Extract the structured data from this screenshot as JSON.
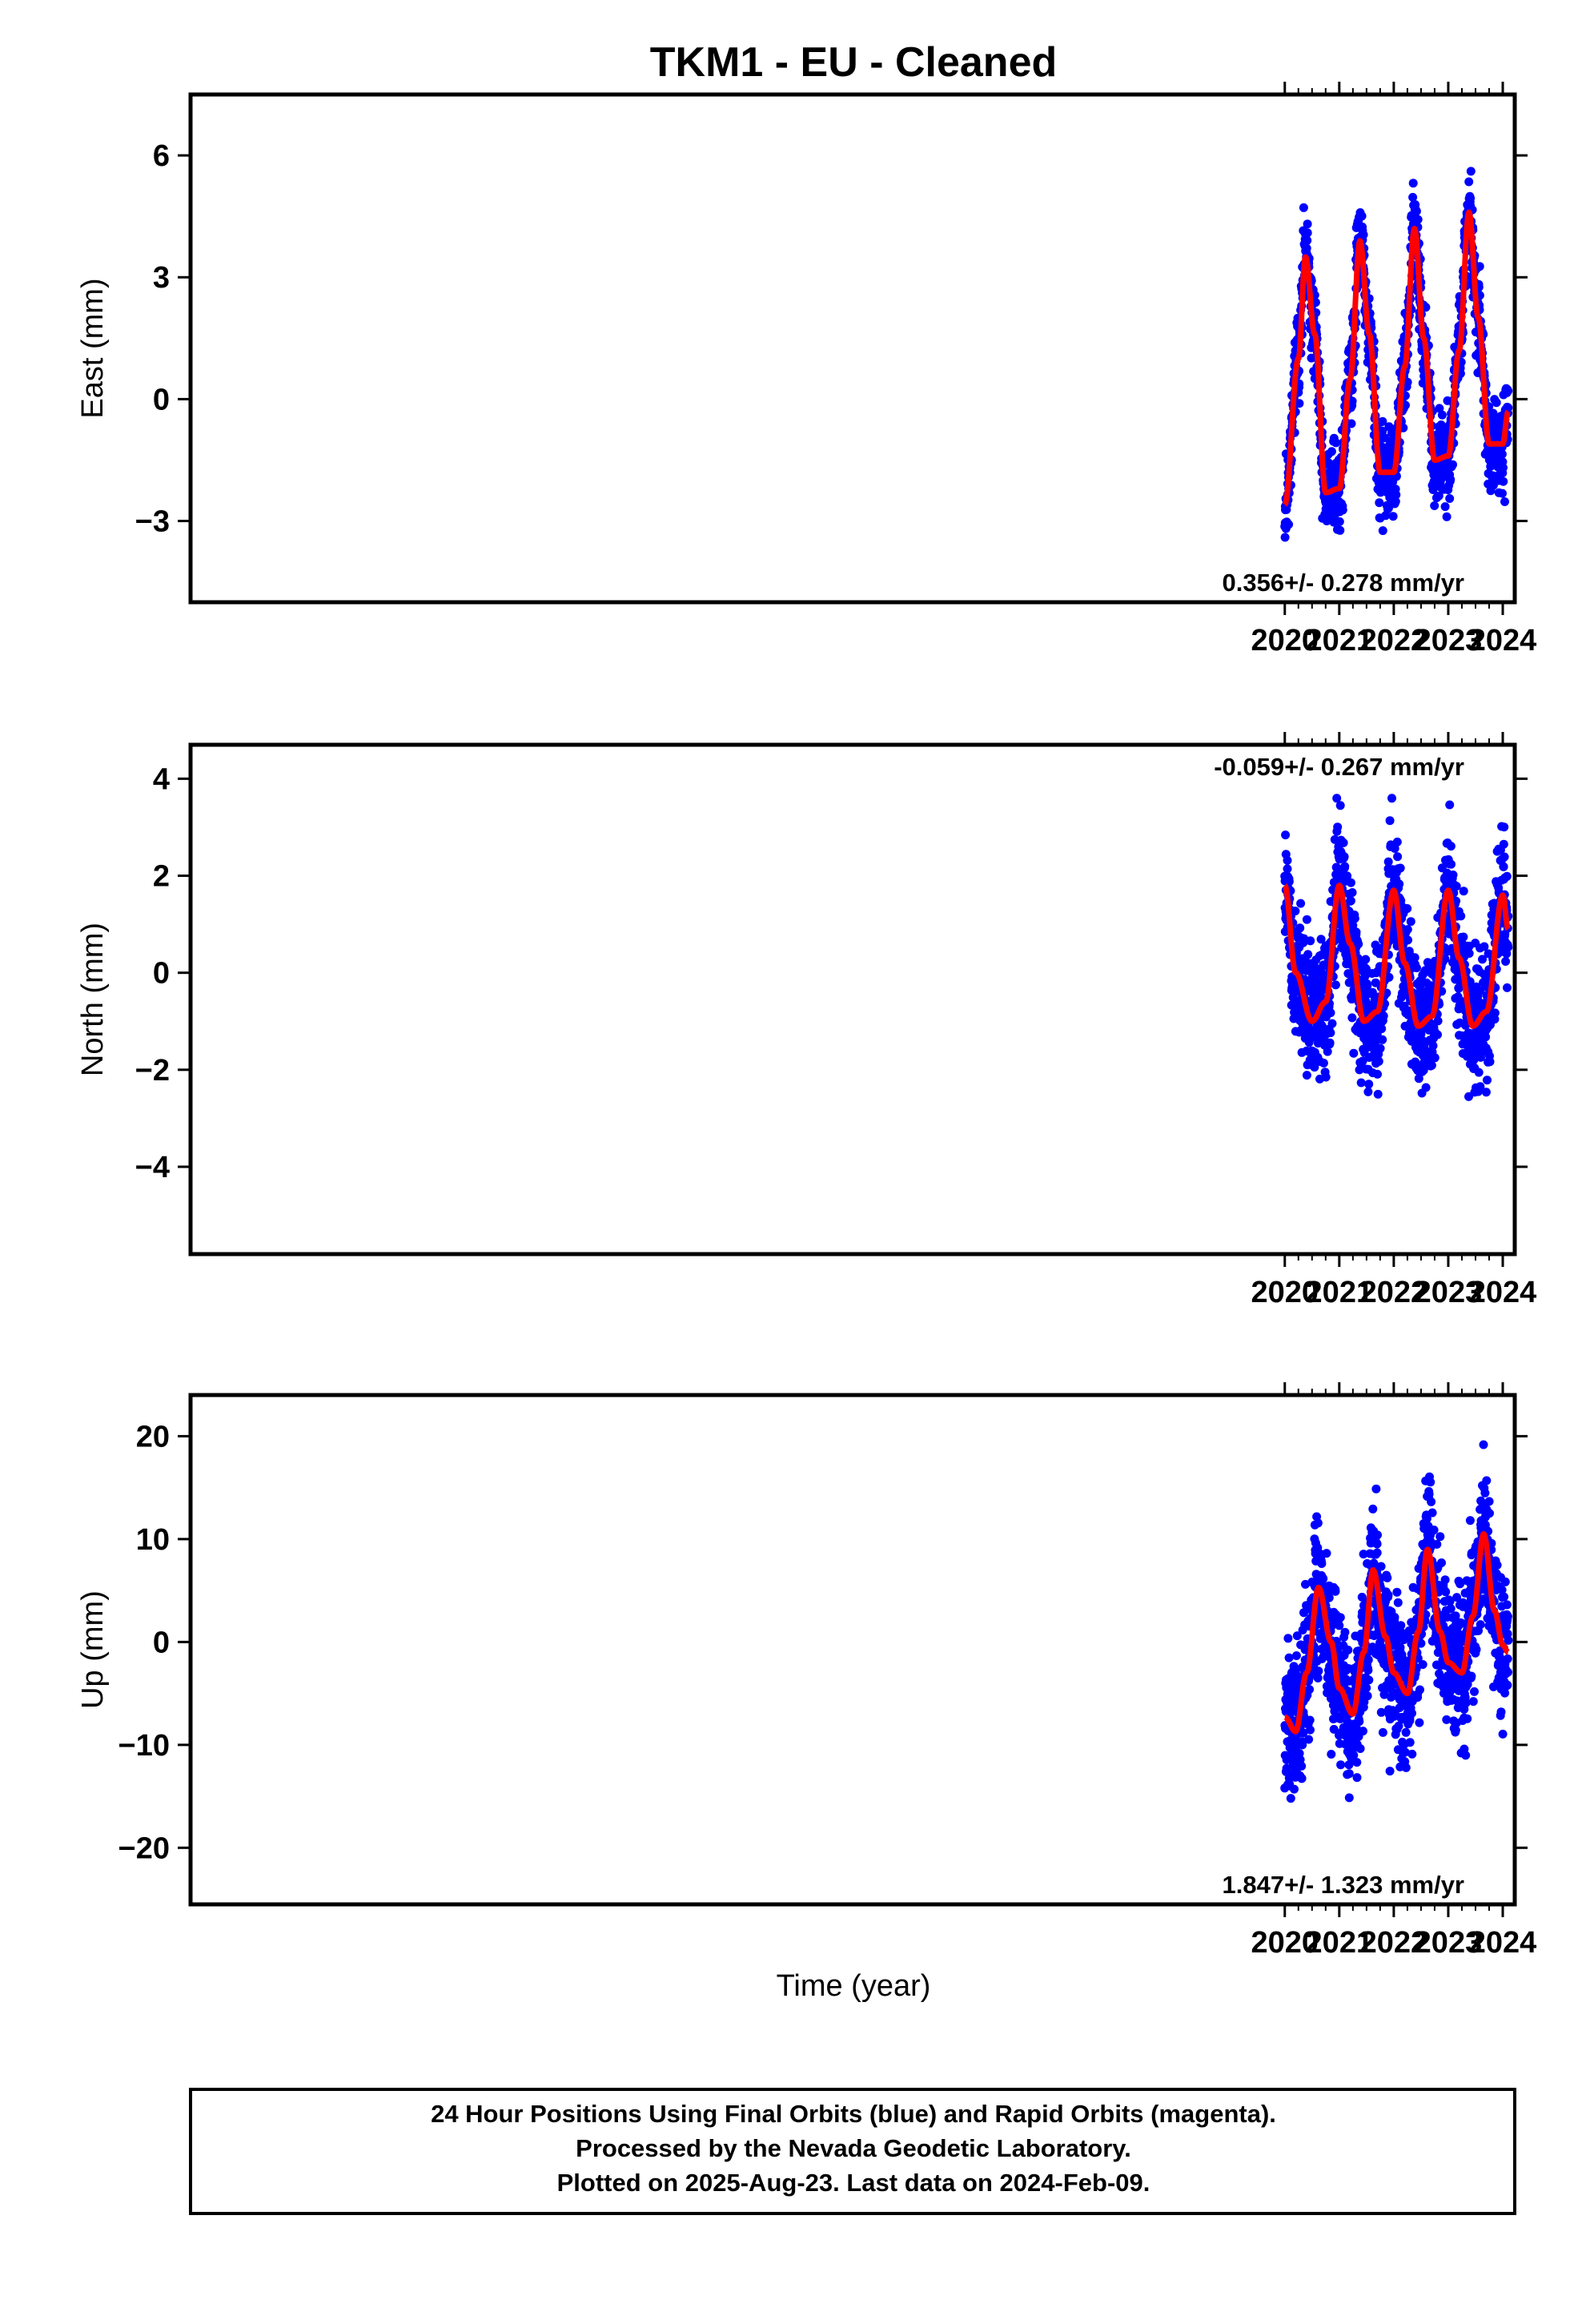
{
  "title": "TKM1  - EU - Cleaned",
  "xlabel": "Time (year)",
  "footer": {
    "line1": "24 Hour Positions Using Final Orbits (blue) and Rapid Orbits (magenta).",
    "line2": "Processed by the Nevada Geodetic Laboratory.",
    "line3": "Plotted on 2025-Aug-23. Last data on 2024-Feb-09."
  },
  "colors": {
    "points": "#0000ff",
    "model": "#ff0000",
    "frame": "#000000"
  },
  "chart_data": [
    {
      "type": "scatter",
      "ylabel": "East (mm)",
      "rate_label": "0.356+/- 0.278 mm/yr",
      "rate_position": "bottom-right",
      "xlim": [
        1999.92,
        2024.22
      ],
      "ylim": [
        -5.0,
        7.5
      ],
      "xticks": [
        2020,
        2021,
        2022,
        2023,
        2024
      ],
      "xtick_labels": [
        "2020",
        "2021",
        "2022",
        "2023",
        "2024"
      ],
      "yticks": [
        -3,
        0,
        3,
        6
      ],
      "ytick_labels": [
        "−3",
        "0",
        "3",
        "6"
      ],
      "points_seed": 11,
      "points_noise_mm": 0.75,
      "model_x": [
        2020.0,
        2020.25,
        2020.38,
        2020.55,
        2020.75,
        2021.0,
        2021.2,
        2021.38,
        2021.55,
        2021.75,
        2022.0,
        2022.2,
        2022.38,
        2022.55,
        2022.75,
        2023.0,
        2023.2,
        2023.38,
        2023.55,
        2023.75,
        2024.0,
        2024.1
      ],
      "model_y": [
        -2.6,
        1.0,
        3.5,
        1.6,
        -2.3,
        -2.2,
        0.5,
        3.9,
        1.6,
        -1.8,
        -1.8,
        0.8,
        4.2,
        1.5,
        -1.5,
        -1.4,
        1.2,
        4.6,
        2.0,
        -1.1,
        -1.1,
        -0.3
      ]
    },
    {
      "type": "scatter",
      "ylabel": "North (mm)",
      "rate_label": "-0.059+/- 0.267 mm/yr",
      "rate_position": "top-right",
      "xlim": [
        1999.92,
        2024.22
      ],
      "ylim": [
        -5.8,
        4.7
      ],
      "xticks": [
        2020,
        2021,
        2022,
        2023,
        2024
      ],
      "xtick_labels": [
        "2020",
        "2021",
        "2022",
        "2023",
        "2024"
      ],
      "yticks": [
        -4,
        -2,
        0,
        2,
        4
      ],
      "ytick_labels": [
        "−4",
        "−2",
        "0",
        "2",
        "4"
      ],
      "points_seed": 23,
      "points_noise_mm": 0.95,
      "model_x": [
        2020.0,
        2020.2,
        2020.5,
        2020.75,
        2021.0,
        2021.2,
        2021.45,
        2021.7,
        2022.0,
        2022.2,
        2022.45,
        2022.7,
        2023.0,
        2023.2,
        2023.45,
        2023.7,
        2024.0,
        2024.1
      ],
      "model_y": [
        1.8,
        0.0,
        -1.0,
        -0.6,
        1.8,
        0.6,
        -1.0,
        -0.8,
        1.7,
        0.2,
        -1.1,
        -0.9,
        1.7,
        0.3,
        -1.1,
        -0.8,
        1.6,
        0.9
      ]
    },
    {
      "type": "scatter",
      "ylabel": "Up (mm)",
      "rate_label": "1.847+/- 1.323 mm/yr",
      "rate_position": "bottom-right",
      "xlim": [
        1999.92,
        2024.22
      ],
      "ylim": [
        -25.5,
        24.0
      ],
      "xticks": [
        2020,
        2021,
        2022,
        2023,
        2024
      ],
      "xtick_labels": [
        "2020",
        "2021",
        "2022",
        "2023",
        "2024"
      ],
      "yticks": [
        -20,
        -10,
        0,
        10,
        20
      ],
      "ytick_labels": [
        "−20",
        "−10",
        "0",
        "10",
        "20"
      ],
      "points_seed": 37,
      "points_noise_mm": 5.0,
      "model_x": [
        2020.0,
        2020.2,
        2020.4,
        2020.62,
        2020.85,
        2021.0,
        2021.25,
        2021.45,
        2021.62,
        2021.85,
        2022.0,
        2022.25,
        2022.45,
        2022.62,
        2022.85,
        2023.0,
        2023.25,
        2023.45,
        2023.65,
        2023.85,
        2024.0,
        2024.1
      ],
      "model_y": [
        -7.3,
        -8.7,
        -3.0,
        5.3,
        0.0,
        -4.5,
        -7.0,
        -1.0,
        7.0,
        0.5,
        -3.0,
        -5.0,
        1.0,
        9.0,
        1.0,
        -2.0,
        -3.0,
        2.5,
        10.5,
        3.0,
        -0.3,
        -1.0
      ]
    }
  ]
}
